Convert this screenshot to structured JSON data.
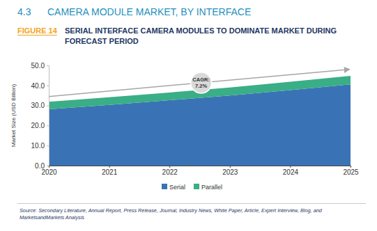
{
  "chart_data": {
    "type": "area",
    "section": "4.3",
    "title": "CAMERA MODULE MARKET, BY INTERFACE",
    "figure_label": "FIGURE 14",
    "subtitle": "SERIAL INTERFACE CAMERA MODULES TO DOMINATE MARKET DURING FORECAST PERIOD",
    "y_label": "Market Size (USD Billion)",
    "annotations": [
      "CAGR:",
      "7.2%"
    ],
    "source": "Source: Secondary Literature, Annual Report, Press Release, Journal, Industry News, White Paper, Article, Expert Interview, Blog, and MarketsandMarkets Analysis",
    "x": [
      2020,
      2021,
      2022,
      2023,
      2024,
      2025
    ],
    "xlim": [
      2020,
      2025
    ],
    "xticks": [
      2020,
      2021,
      2022,
      2023,
      2024,
      2025
    ],
    "ylim": [
      0,
      50
    ],
    "yticks": [
      {
        "value": 0,
        "label": "0.0"
      },
      {
        "value": 10,
        "label": "10.0"
      },
      {
        "value": 20,
        "label": "20.0"
      },
      {
        "value": 30,
        "label": "30.0"
      },
      {
        "value": 40,
        "label": "40.0"
      },
      {
        "value": 50,
        "label": "50.0"
      }
    ],
    "stacked": true,
    "grid": false,
    "legend": "bottom",
    "series": [
      {
        "name": "Serial",
        "color": "#3a73b5",
        "values": [
          28.1,
          30.3,
          32.6,
          35.0,
          37.7,
          40.5
        ]
      },
      {
        "name": "Parallel",
        "color": "#3aae86",
        "values": [
          3.8,
          3.8,
          3.9,
          4.0,
          4.1,
          4.3
        ]
      }
    ]
  }
}
